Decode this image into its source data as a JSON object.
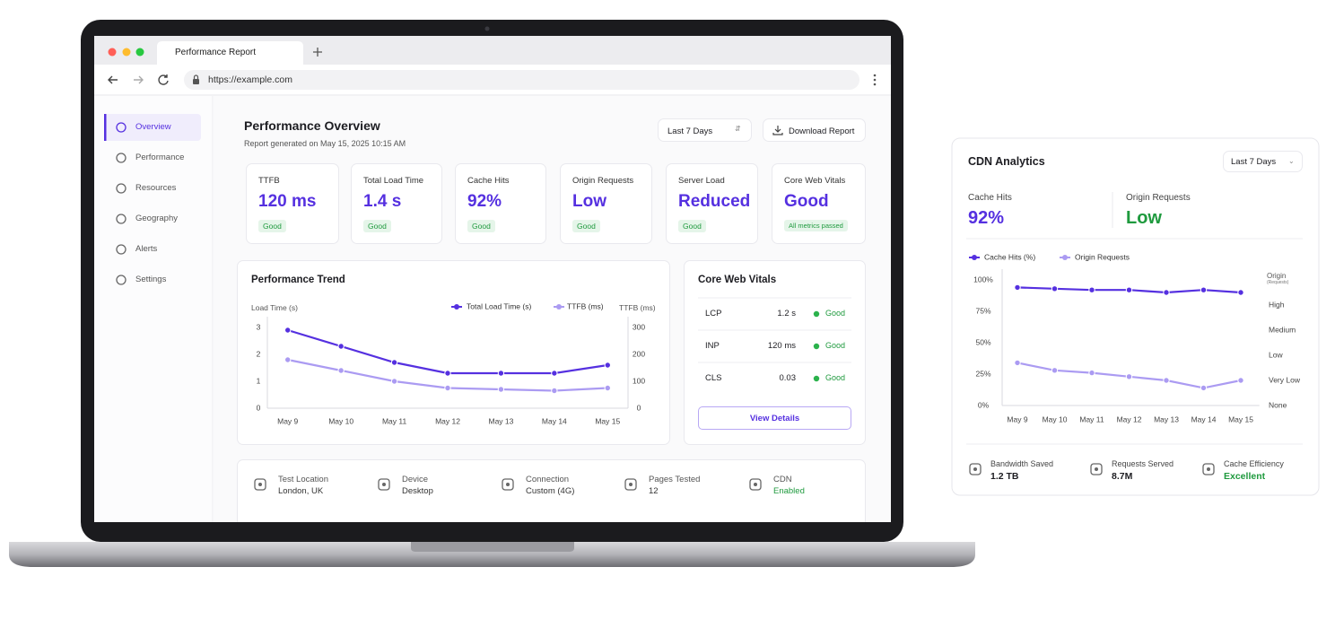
{
  "browser": {
    "tab_title": "Performance Report",
    "url": "https://example.com"
  },
  "sidebar": [
    "Overview",
    "Performance",
    "Resources",
    "Geography",
    "Alerts",
    "Settings"
  ],
  "header": {
    "title": "Performance Overview",
    "subtitle": "Report generated on May 15, 2025 10:15 AM",
    "range": "Last 7 Days",
    "download": "Download Report"
  },
  "metrics": [
    {
      "label": "TTFB",
      "value": "120 ms",
      "status": "Good"
    },
    {
      "label": "Total Load Time",
      "value": "1.4 s",
      "status": "Good"
    },
    {
      "label": "Cache Hits",
      "value": "92%",
      "status": "Good"
    },
    {
      "label": "Origin Requests",
      "value": "Low",
      "status": "Good"
    },
    {
      "label": "Server Load",
      "value": "Reduced",
      "status": "Good"
    },
    {
      "label": "Core Web Vitals",
      "value": "Good",
      "status": "All metrics passed"
    }
  ],
  "chart_data": [
    {
      "type": "line",
      "title": "Performance Trend",
      "y_label": "Load Time (s)",
      "y2_label": "TTFB (ms)",
      "categories": [
        "May 9",
        "May 10",
        "May 11",
        "May 12",
        "May 13",
        "May 14",
        "May 15"
      ],
      "series": [
        {
          "name": "Total Load Time (s)",
          "color": "#5530e0",
          "values": [
            2.9,
            2.3,
            1.7,
            1.3,
            1.3,
            1.3,
            1.6
          ]
        },
        {
          "name": "TTFB (ms)",
          "color": "#ab9bf2",
          "axis": "y2",
          "values": [
            180,
            140,
            100,
            75,
            70,
            65,
            75
          ]
        }
      ],
      "ylim": [
        0,
        3
      ],
      "yticks": [
        0,
        1,
        2,
        3
      ],
      "y2lim": [
        0,
        300
      ],
      "y2ticks": [
        0,
        100,
        200,
        300
      ]
    },
    {
      "type": "line",
      "y2_label": "Origin",
      "y2_sublabel": "(Requests)",
      "categories": [
        "May 9",
        "May 10",
        "May 11",
        "May 12",
        "May 13",
        "May 14",
        "May 15"
      ],
      "series": [
        {
          "name": "Cache Hits (%)",
          "color": "#5530e0",
          "values": [
            94,
            93,
            92,
            92,
            90,
            92,
            90
          ]
        },
        {
          "name": "Origin Requests",
          "color": "#ab9bf2",
          "axis": "y2",
          "values": [
            1.7,
            1.4,
            1.3,
            1.15,
            1.0,
            0.7,
            1.0
          ]
        }
      ],
      "ylim": [
        0,
        100
      ],
      "yticks": [
        {
          "value": 0,
          "label": "0%"
        },
        {
          "value": 25,
          "label": "25%"
        },
        {
          "value": 50,
          "label": "50%"
        },
        {
          "value": 75,
          "label": "75%"
        },
        {
          "value": 100,
          "label": "100%"
        }
      ],
      "y2lim": [
        0,
        5
      ],
      "y2ticks": [
        {
          "value": 0,
          "label": "None"
        },
        {
          "value": 1,
          "label": "Very Low"
        },
        {
          "value": 2,
          "label": "Low"
        },
        {
          "value": 3,
          "label": "Medium"
        },
        {
          "value": 4,
          "label": "High"
        }
      ]
    }
  ],
  "vitals": {
    "title": "Core Web Vitals",
    "rows": [
      [
        "LCP",
        "1.2 s",
        "Good"
      ],
      [
        "INP",
        "120 ms",
        "Good"
      ],
      [
        "CLS",
        "0.03",
        "Good"
      ]
    ],
    "button": "View Details"
  },
  "test_info": [
    {
      "label": "Test Location",
      "value": "London, UK"
    },
    {
      "label": "Device",
      "value": "Desktop"
    },
    {
      "label": "Connection",
      "value": "Custom (4G)"
    },
    {
      "label": "Pages Tested",
      "value": "12"
    },
    {
      "label": "CDN",
      "value": "Enabled"
    }
  ],
  "cdn": {
    "title": "CDN Analytics",
    "range": "Last 7 Days",
    "stats": [
      {
        "label": "Cache Hits",
        "value": "92%"
      },
      {
        "label": "Origin Requests",
        "value": "Low"
      }
    ],
    "footer": [
      {
        "label": "Bandwidth Saved",
        "value": "1.2 TB"
      },
      {
        "label": "Requests Served",
        "value": "8.7M"
      },
      {
        "label": "Cache Efficiency",
        "value": "Excellent"
      }
    ]
  }
}
